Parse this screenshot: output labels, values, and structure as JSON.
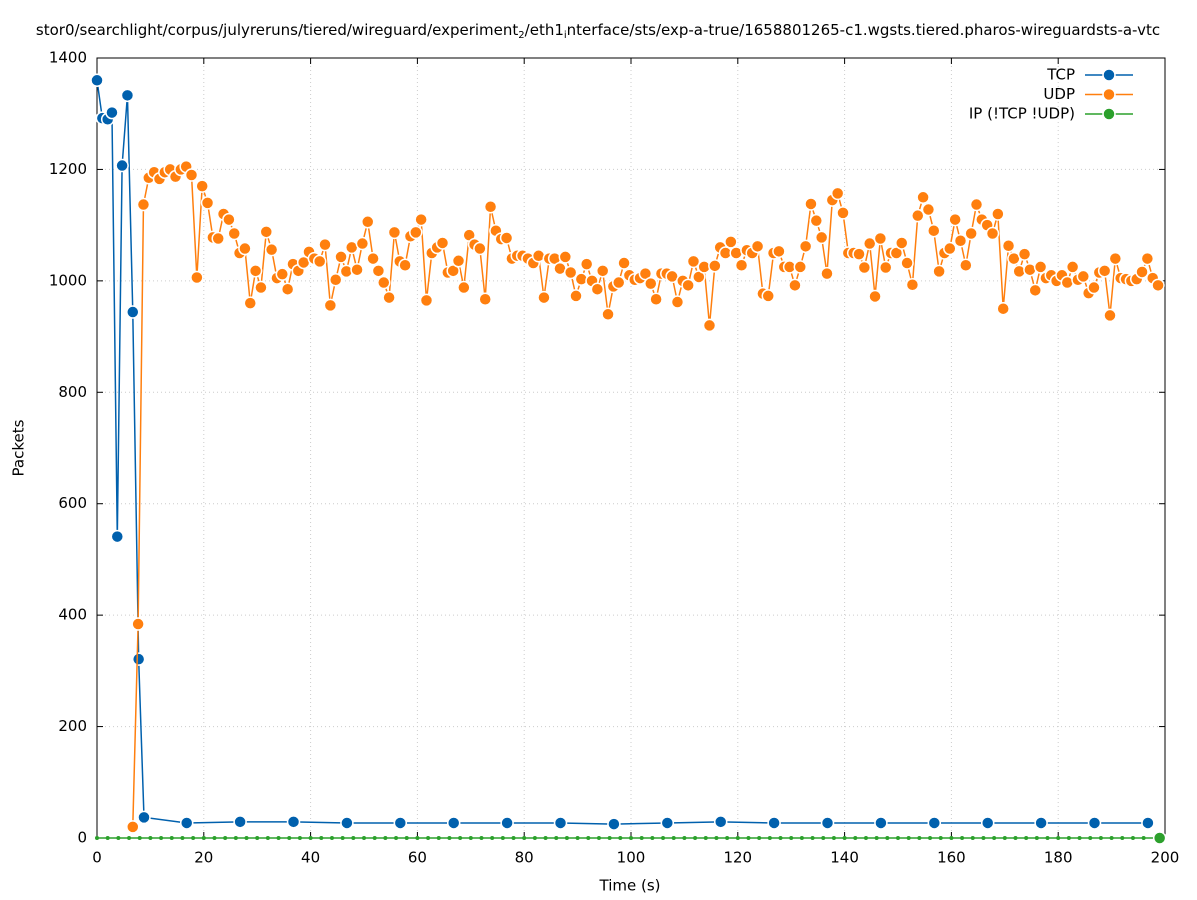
{
  "chart_data": {
    "type": "line",
    "title": [
      "stor0/searchlight/corpus/julyreruns/tiered/wireguard/experiment",
      "2",
      "/eth1",
      "i",
      "nterface/sts/exp-a-true/1658801265-c1.wgsts.tiered.pharos-wireguardsts-a-vtc"
    ],
    "x_label": "Time (s)",
    "y_label": "Packets",
    "xlim": [
      0,
      200
    ],
    "xticks": [
      0,
      20,
      40,
      60,
      80,
      100,
      120,
      140,
      160,
      180,
      200
    ],
    "ylim": [
      0,
      1400
    ],
    "yticks": [
      0,
      200,
      400,
      600,
      800,
      1000,
      1200,
      1400
    ],
    "grid": true,
    "legend": "top-right",
    "series": [
      {
        "name": "TCP",
        "color": "#0060ad",
        "x": [
          0,
          1,
          2,
          2.8,
          3.8,
          4.7,
          5.7,
          6.7,
          7.8,
          8.8,
          16.8,
          26.8,
          36.8,
          46.8,
          56.8,
          66.8,
          76.8,
          86.8,
          96.8,
          106.8,
          116.8,
          126.8,
          136.8,
          146.8,
          156.8,
          166.8,
          176.8,
          186.8,
          196.8
        ],
        "values": [
          1360,
          1292,
          1290,
          1302,
          541,
          1207,
          1333,
          944,
          321,
          37,
          27,
          29,
          29,
          27,
          27,
          27,
          27,
          27,
          25,
          27,
          29,
          27,
          27,
          27,
          27,
          27,
          27,
          27,
          27
        ]
      },
      {
        "name": "UDP",
        "color": "#ff7f0e",
        "x": [
          6.7,
          7.7,
          8.7,
          9.7,
          10.7,
          11.7,
          12.7,
          13.7,
          14.7,
          15.7,
          16.7,
          17.7,
          18.7,
          19.7,
          20.7,
          21.7,
          22.7,
          23.7,
          24.7,
          25.7,
          26.7,
          27.7,
          28.7,
          29.7,
          30.7,
          31.7,
          32.7,
          33.7,
          34.7,
          35.7,
          36.7,
          37.7,
          38.7,
          39.7,
          40.7,
          41.7,
          42.7,
          43.7,
          44.7,
          45.7,
          46.7,
          47.7,
          48.7,
          49.7,
          50.7,
          51.7,
          52.7,
          53.7,
          54.7,
          55.7,
          56.7,
          57.7,
          58.7,
          59.7,
          60.7,
          61.7,
          62.7,
          63.7,
          64.7,
          65.7,
          66.7,
          67.7,
          68.7,
          69.7,
          70.7,
          71.7,
          72.7,
          73.7,
          74.7,
          75.7,
          76.7,
          77.7,
          78.7,
          79.7,
          80.7,
          81.7,
          82.7,
          83.7,
          84.7,
          85.7,
          86.7,
          87.7,
          88.7,
          89.7,
          90.7,
          91.7,
          92.7,
          93.7,
          94.7,
          95.7,
          96.7,
          97.7,
          98.7,
          99.7,
          100.7,
          101.7,
          102.7,
          103.7,
          104.7,
          105.7,
          106.7,
          107.7,
          108.7,
          109.7,
          110.7,
          111.7,
          112.7,
          113.7,
          114.7,
          115.7,
          116.7,
          117.7,
          118.7,
          119.7,
          120.7,
          121.7,
          122.7,
          123.7,
          124.7,
          125.7,
          126.7,
          127.7,
          128.7,
          129.7,
          130.7,
          131.7,
          132.7,
          133.7,
          134.7,
          135.7,
          136.7,
          137.7,
          138.7,
          139.7,
          140.7,
          141.7,
          142.7,
          143.7,
          144.7,
          145.7,
          146.7,
          147.7,
          148.7,
          149.7,
          150.7,
          151.7,
          152.7,
          153.7,
          154.7,
          155.7,
          156.7,
          157.7,
          158.7,
          159.7,
          160.7,
          161.7,
          162.7,
          163.7,
          164.7,
          165.7,
          166.7,
          167.7,
          168.7,
          169.7,
          170.7,
          171.7,
          172.7,
          173.7,
          174.7,
          175.7,
          176.7,
          177.7,
          178.7,
          179.7,
          180.7,
          181.7,
          182.7,
          183.7,
          184.7,
          185.7,
          186.7,
          187.7,
          188.7,
          189.7,
          190.7,
          191.7,
          192.7,
          193.7,
          194.7,
          195.7,
          196.7,
          197.7,
          198.7
        ],
        "values": [
          20,
          384,
          1137,
          1185,
          1195,
          1183,
          1195,
          1200,
          1187,
          1200,
          1205,
          1190,
          1006,
          1170,
          1140,
          1078,
          1076,
          1120,
          1110,
          1085,
          1050,
          1058,
          960,
          1018,
          988,
          1088,
          1056,
          1005,
          1012,
          985,
          1030,
          1018,
          1033,
          1052,
          1040,
          1035,
          1065,
          956,
          1002,
          1043,
          1017,
          1060,
          1020,
          1067,
          1106,
          1040,
          1018,
          997,
          970,
          1087,
          1035,
          1028,
          1080,
          1087,
          1110,
          965,
          1050,
          1060,
          1068,
          1015,
          1018,
          1036,
          988,
          1082,
          1065,
          1058,
          967,
          1133,
          1090,
          1075,
          1077,
          1040,
          1045,
          1045,
          1040,
          1032,
          1045,
          970,
          1040,
          1040,
          1022,
          1043,
          1015,
          973,
          1003,
          1030,
          1000,
          985,
          1018,
          940,
          990,
          997,
          1032,
          1010,
          1002,
          1005,
          1013,
          995,
          967,
          1013,
          1013,
          1008,
          962,
          1000,
          992,
          1035,
          1007,
          1025,
          920,
          1027,
          1060,
          1050,
          1070,
          1050,
          1028,
          1055,
          1050,
          1062,
          977,
          973,
          1050,
          1053,
          1025,
          1025,
          992,
          1025,
          1062,
          1138,
          1108,
          1078,
          1013,
          1145,
          1157,
          1122,
          1050,
          1050,
          1048,
          1024,
          1067,
          972,
          1076,
          1024,
          1050,
          1050,
          1068,
          1032,
          993,
          1117,
          1150,
          1128,
          1090,
          1017,
          1050,
          1058,
          1110,
          1072,
          1028,
          1085,
          1137,
          1110,
          1100,
          1085,
          1120,
          950,
          1063,
          1040,
          1017,
          1048,
          1020,
          983,
          1025,
          1005,
          1010,
          1000,
          1010,
          997,
          1025,
          1002,
          1008,
          978,
          988,
          1015,
          1018,
          938,
          1040,
          1005,
          1003,
          1000,
          1003,
          1016,
          1040,
          1005,
          992
        ]
      },
      {
        "name": "IP (!TCP  !UDP)",
        "color": "#2ca02c",
        "x": [
          0,
          2,
          4,
          6,
          8,
          10,
          12,
          14,
          16,
          18,
          20,
          22,
          24,
          26,
          28,
          30,
          32,
          34,
          36,
          38,
          40,
          42,
          44,
          46,
          48,
          50,
          52,
          54,
          56,
          58,
          60,
          62,
          64,
          66,
          68,
          70,
          72,
          74,
          76,
          78,
          80,
          82,
          84,
          86,
          88,
          90,
          92,
          94,
          96,
          98,
          100,
          102,
          104,
          106,
          108,
          110,
          112,
          114,
          116,
          118,
          120,
          122,
          124,
          126,
          128,
          130,
          132,
          134,
          136,
          138,
          140,
          142,
          144,
          146,
          148,
          150,
          152,
          154,
          156,
          158,
          160,
          162,
          164,
          166,
          168,
          170,
          172,
          174,
          176,
          178,
          180,
          182,
          184,
          186,
          188,
          190,
          192,
          194,
          196,
          199
        ],
        "values": [
          0,
          0,
          0,
          0,
          0,
          0,
          0,
          0,
          0,
          0,
          0,
          0,
          0,
          0,
          0,
          0,
          0,
          0,
          0,
          0,
          0,
          0,
          0,
          0,
          0,
          0,
          0,
          0,
          0,
          0,
          0,
          0,
          0,
          0,
          0,
          0,
          0,
          0,
          0,
          0,
          0,
          0,
          0,
          0,
          0,
          0,
          0,
          0,
          0,
          0,
          0,
          0,
          0,
          0,
          0,
          0,
          0,
          0,
          0,
          0,
          0,
          0,
          0,
          0,
          0,
          0,
          0,
          0,
          0,
          0,
          0,
          0,
          0,
          0,
          0,
          0,
          0,
          0,
          0,
          0,
          0,
          0,
          0,
          0,
          0,
          0,
          0,
          0,
          0,
          0,
          0,
          0,
          0,
          0,
          0,
          0,
          0,
          0,
          0,
          0
        ]
      }
    ]
  }
}
